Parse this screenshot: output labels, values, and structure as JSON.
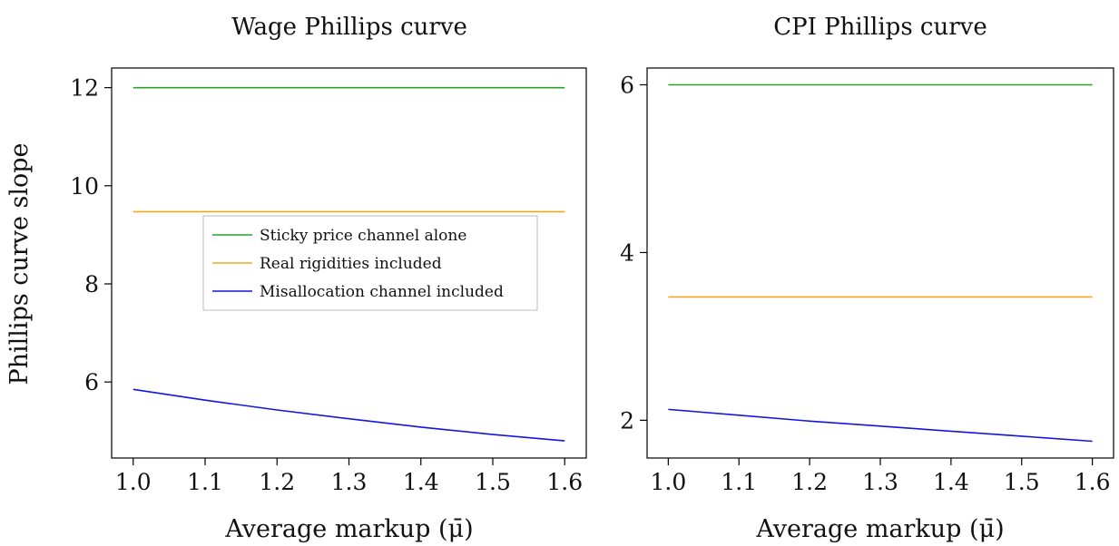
{
  "chart_data": [
    {
      "type": "line",
      "title": "Wage Phillips curve",
      "xlabel": "Average markup (μ̄)",
      "ylabel": "Phillips curve slope",
      "xlim": [
        0.97,
        1.63
      ],
      "ylim": [
        4.45,
        12.4
      ],
      "xticks": [
        1.0,
        1.1,
        1.2,
        1.3,
        1.4,
        1.5,
        1.6
      ],
      "xtick_labels": [
        "1.0",
        "1.1",
        "1.2",
        "1.3",
        "1.4",
        "1.5",
        "1.6"
      ],
      "yticks": [
        6,
        8,
        10,
        12
      ],
      "ytick_labels": [
        "6",
        "8",
        "10",
        "12"
      ],
      "grid": false,
      "legend_position": "center",
      "series": [
        {
          "name": "Sticky price channel alone",
          "color": "#2ca02c",
          "x": [
            1.0,
            1.1,
            1.2,
            1.3,
            1.4,
            1.5,
            1.6
          ],
          "y": [
            12.0,
            12.0,
            12.0,
            12.0,
            12.0,
            12.0,
            12.0
          ]
        },
        {
          "name": "Real rigidities included",
          "color": "#f5a623",
          "x": [
            1.0,
            1.1,
            1.2,
            1.3,
            1.4,
            1.5,
            1.6
          ],
          "y": [
            9.47,
            9.47,
            9.47,
            9.47,
            9.47,
            9.47,
            9.47
          ]
        },
        {
          "name": "Misallocation channel included",
          "color": "#1515e0",
          "x": [
            1.0,
            1.1,
            1.2,
            1.3,
            1.4,
            1.5,
            1.6
          ],
          "y": [
            5.85,
            5.63,
            5.43,
            5.25,
            5.08,
            4.93,
            4.8
          ]
        }
      ]
    },
    {
      "type": "line",
      "title": "CPI Phillips curve",
      "xlabel": "Average markup (μ̄)",
      "ylabel": "",
      "xlim": [
        0.97,
        1.63
      ],
      "ylim": [
        1.55,
        6.2
      ],
      "xticks": [
        1.0,
        1.1,
        1.2,
        1.3,
        1.4,
        1.5,
        1.6
      ],
      "xtick_labels": [
        "1.0",
        "1.1",
        "1.2",
        "1.3",
        "1.4",
        "1.5",
        "1.6"
      ],
      "yticks": [
        2,
        4,
        6
      ],
      "ytick_labels": [
        "2",
        "4",
        "6"
      ],
      "grid": false,
      "legend_position": "none",
      "series": [
        {
          "color": "#2ca02c",
          "x": [
            1.0,
            1.1,
            1.2,
            1.3,
            1.4,
            1.5,
            1.6
          ],
          "y": [
            6.0,
            6.0,
            6.0,
            6.0,
            6.0,
            6.0,
            6.0
          ]
        },
        {
          "color": "#f5a623",
          "x": [
            1.0,
            1.1,
            1.2,
            1.3,
            1.4,
            1.5,
            1.6
          ],
          "y": [
            3.47,
            3.47,
            3.47,
            3.47,
            3.47,
            3.47,
            3.47
          ]
        },
        {
          "color": "#1515e0",
          "x": [
            1.0,
            1.1,
            1.2,
            1.3,
            1.4,
            1.5,
            1.6
          ],
          "y": [
            2.13,
            2.06,
            1.99,
            1.93,
            1.87,
            1.81,
            1.75
          ]
        }
      ]
    }
  ]
}
